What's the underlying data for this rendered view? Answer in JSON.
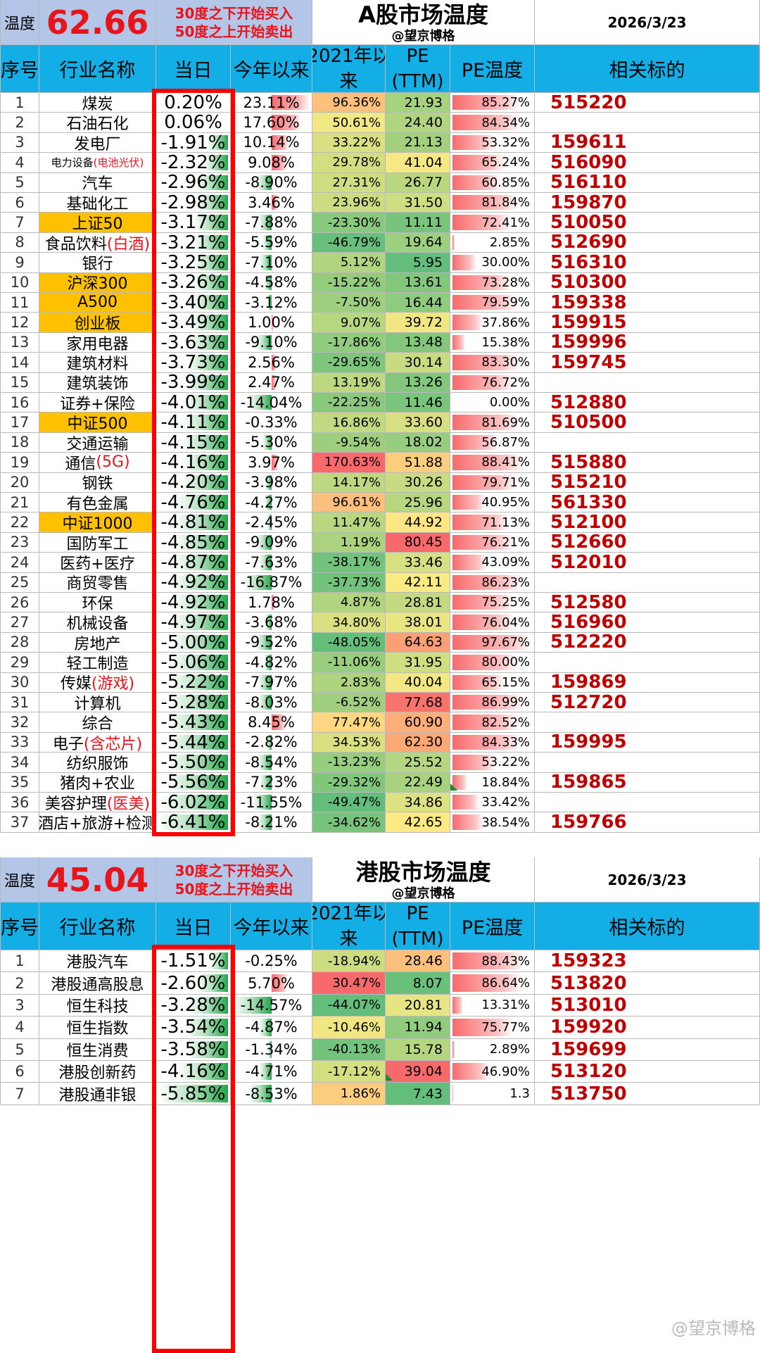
{
  "a": {
    "temp_label": "温度",
    "temp_value": "62.66",
    "rule_buy": "30度之下开始买入",
    "rule_sell": "50度之上开始卖出",
    "title": "A股市场温度",
    "author": "@望京博格",
    "date": "2026/3/23",
    "headers": [
      "序号",
      "行业名称",
      "当日",
      "今年以来",
      "2021年以",
      "来",
      "PE",
      "(TTM)",
      "PE温度",
      "相关标的"
    ],
    "rows": [
      {
        "n": "1",
        "name": "煤炭",
        "suffix": "",
        "day": "0.20%",
        "ytd": "23.11%",
        "yr": "96.36%",
        "pe": "21.93",
        "pt": "85.27%",
        "tk": "515220"
      },
      {
        "n": "2",
        "name": "石油石化",
        "suffix": "",
        "day": "0.06%",
        "ytd": "17.60%",
        "yr": "50.61%",
        "pe": "24.40",
        "pt": "84.34%",
        "tk": ""
      },
      {
        "n": "3",
        "name": "发电厂",
        "suffix": "",
        "day": "-1.91%",
        "ytd": "10.14%",
        "yr": "33.22%",
        "pe": "21.13",
        "pt": "53.32%",
        "tk": "159611"
      },
      {
        "n": "4",
        "name": "电力设备",
        "suffix": "(电池光伏)",
        "day": "-2.32%",
        "ytd": "9.08%",
        "yr": "29.78%",
        "pe": "41.04",
        "pt": "65.24%",
        "tk": "516090"
      },
      {
        "n": "5",
        "name": "汽车",
        "suffix": "",
        "day": "-2.96%",
        "ytd": "-8.90%",
        "yr": "27.31%",
        "pe": "26.77",
        "pt": "60.85%",
        "tk": "516110"
      },
      {
        "n": "6",
        "name": "基础化工",
        "suffix": "",
        "day": "-2.98%",
        "ytd": "3.46%",
        "yr": "23.96%",
        "pe": "31.50",
        "pt": "81.84%",
        "tk": "159870"
      },
      {
        "n": "7",
        "name": "上证50",
        "suffix": "",
        "day": "-3.17%",
        "ytd": "-7.88%",
        "yr": "-23.30%",
        "pe": "11.11",
        "pt": "72.41%",
        "tk": "510050"
      },
      {
        "n": "8",
        "name": "食品饮料",
        "suffix": "(白酒)",
        "day": "-3.21%",
        "ytd": "-5.59%",
        "yr": "-46.79%",
        "pe": "19.64",
        "pt": "2.85%",
        "tk": "512690"
      },
      {
        "n": "9",
        "name": "银行",
        "suffix": "",
        "day": "-3.25%",
        "ytd": "-7.10%",
        "yr": "5.12%",
        "pe": "5.95",
        "pt": "30.00%",
        "tk": "516310"
      },
      {
        "n": "10",
        "name": "沪深300",
        "suffix": "",
        "day": "-3.26%",
        "ytd": "-4.58%",
        "yr": "-15.22%",
        "pe": "13.61",
        "pt": "73.28%",
        "tk": "510300"
      },
      {
        "n": "11",
        "name": "A500",
        "suffix": "",
        "day": "-3.40%",
        "ytd": "-3.12%",
        "yr": "-7.50%",
        "pe": "16.44",
        "pt": "79.59%",
        "tk": "159338"
      },
      {
        "n": "12",
        "name": "创业板",
        "suffix": "",
        "day": "-3.49%",
        "ytd": "1.00%",
        "yr": "9.07%",
        "pe": "39.72",
        "pt": "37.86%",
        "tk": "159915"
      },
      {
        "n": "13",
        "name": "家用电器",
        "suffix": "",
        "day": "-3.63%",
        "ytd": "-9.10%",
        "yr": "-17.86%",
        "pe": "13.48",
        "pt": "15.38%",
        "tk": "159996"
      },
      {
        "n": "14",
        "name": "建筑材料",
        "suffix": "",
        "day": "-3.73%",
        "ytd": "2.56%",
        "yr": "-29.65%",
        "pe": "30.14",
        "pt": "83.30%",
        "tk": "159745"
      },
      {
        "n": "15",
        "name": "建筑装饰",
        "suffix": "",
        "day": "-3.99%",
        "ytd": "2.47%",
        "yr": "13.19%",
        "pe": "13.26",
        "pt": "76.72%",
        "tk": ""
      },
      {
        "n": "16",
        "name": "证券+保险",
        "suffix": "",
        "day": "-4.01%",
        "ytd": "-14.04%",
        "yr": "-22.25%",
        "pe": "11.46",
        "pt": "0.00%",
        "tk": "512880"
      },
      {
        "n": "17",
        "name": "中证500",
        "suffix": "",
        "day": "-4.11%",
        "ytd": "-0.33%",
        "yr": "16.86%",
        "pe": "33.60",
        "pt": "81.69%",
        "tk": "510500"
      },
      {
        "n": "18",
        "name": "交通运输",
        "suffix": "",
        "day": "-4.15%",
        "ytd": "-5.30%",
        "yr": "-9.54%",
        "pe": "18.02",
        "pt": "56.87%",
        "tk": ""
      },
      {
        "n": "19",
        "name": "通信",
        "suffix": "(5G)",
        "day": "-4.16%",
        "ytd": "3.97%",
        "yr": "170.63%",
        "pe": "51.88",
        "pt": "88.41%",
        "tk": "515880"
      },
      {
        "n": "20",
        "name": "钢铁",
        "suffix": "",
        "day": "-4.20%",
        "ytd": "-3.98%",
        "yr": "14.17%",
        "pe": "30.26",
        "pt": "79.71%",
        "tk": "515210"
      },
      {
        "n": "21",
        "name": "有色金属",
        "suffix": "",
        "day": "-4.76%",
        "ytd": "-4.27%",
        "yr": "96.61%",
        "pe": "25.96",
        "pt": "40.95%",
        "tk": "561330"
      },
      {
        "n": "22",
        "name": "中证1000",
        "suffix": "",
        "day": "-4.81%",
        "ytd": "-2.45%",
        "yr": "11.47%",
        "pe": "44.92",
        "pt": "71.13%",
        "tk": "512100"
      },
      {
        "n": "23",
        "name": "国防军工",
        "suffix": "",
        "day": "-4.85%",
        "ytd": "-9.09%",
        "yr": "1.19%",
        "pe": "80.45",
        "pt": "76.21%",
        "tk": "512660"
      },
      {
        "n": "24",
        "name": "医药+医疗",
        "suffix": "",
        "day": "-4.87%",
        "ytd": "-7.63%",
        "yr": "-38.17%",
        "pe": "33.46",
        "pt": "43.09%",
        "tk": "512010"
      },
      {
        "n": "25",
        "name": "商贸零售",
        "suffix": "",
        "day": "-4.92%",
        "ytd": "-16.87%",
        "yr": "-37.73%",
        "pe": "42.11",
        "pt": "86.23%",
        "tk": ""
      },
      {
        "n": "26",
        "name": "环保",
        "suffix": "",
        "day": "-4.92%",
        "ytd": "1.78%",
        "yr": "4.87%",
        "pe": "28.81",
        "pt": "75.25%",
        "tk": "512580"
      },
      {
        "n": "27",
        "name": "机械设备",
        "suffix": "",
        "day": "-4.97%",
        "ytd": "-3.68%",
        "yr": "34.80%",
        "pe": "38.01",
        "pt": "76.04%",
        "tk": "516960"
      },
      {
        "n": "28",
        "name": "房地产",
        "suffix": "",
        "day": "-5.00%",
        "ytd": "-9.52%",
        "yr": "-48.05%",
        "pe": "64.63",
        "pt": "97.67%",
        "tk": "512220"
      },
      {
        "n": "29",
        "name": "轻工制造",
        "suffix": "",
        "day": "-5.06%",
        "ytd": "-4.82%",
        "yr": "-11.06%",
        "pe": "31.95",
        "pt": "80.00%",
        "tk": ""
      },
      {
        "n": "30",
        "name": "传媒",
        "suffix": "(游戏)",
        "day": "-5.22%",
        "ytd": "-7.97%",
        "yr": "2.83%",
        "pe": "40.04",
        "pt": "65.15%",
        "tk": "159869"
      },
      {
        "n": "31",
        "name": "计算机",
        "suffix": "",
        "day": "-5.28%",
        "ytd": "-8.03%",
        "yr": "-6.52%",
        "pe": "77.68",
        "pt": "86.99%",
        "tk": "512720"
      },
      {
        "n": "32",
        "name": "综合",
        "suffix": "",
        "day": "-5.43%",
        "ytd": "8.45%",
        "yr": "77.47%",
        "pe": "60.90",
        "pt": "82.52%",
        "tk": ""
      },
      {
        "n": "33",
        "name": "电子",
        "suffix": "(含芯片)",
        "day": "-5.44%",
        "ytd": "-2.82%",
        "yr": "34.53%",
        "pe": "62.30",
        "pt": "84.33%",
        "tk": "159995"
      },
      {
        "n": "34",
        "name": "纺织服饰",
        "suffix": "",
        "day": "-5.50%",
        "ytd": "-8.54%",
        "yr": "-13.23%",
        "pe": "25.52",
        "pt": "53.22%",
        "tk": ""
      },
      {
        "n": "35",
        "name": "猪肉+农业",
        "suffix": "",
        "day": "-5.56%",
        "ytd": "-7.23%",
        "yr": "-29.32%",
        "pe": "22.49",
        "pt": "18.84%",
        "tk": "159865"
      },
      {
        "n": "36",
        "name": "美容护理",
        "suffix": "(医美)",
        "day": "-6.02%",
        "ytd": "-11.55%",
        "yr": "-49.47%",
        "pe": "34.86",
        "pt": "33.42%",
        "tk": ""
      },
      {
        "n": "37",
        "name": "酒店+旅游+检测",
        "suffix": "",
        "day": "-6.41%",
        "ytd": "-8.21%",
        "yr": "-34.62%",
        "pe": "42.65",
        "pt": "38.54%",
        "tk": "159766"
      }
    ]
  },
  "hk": {
    "temp_label": "温度",
    "temp_value": "45.04",
    "rule_buy": "30度之下开始买入",
    "rule_sell": "50度之上开始卖出",
    "title": "港股市场温度",
    "author": "@望京博格",
    "date": "2026/3/23",
    "headers": [
      "序号",
      "行业名称",
      "当日",
      "今年以来",
      "2021年以",
      "来",
      "PE",
      "(TTM)",
      "PE温度",
      "相关标的"
    ],
    "rows": [
      {
        "n": "1",
        "name": "港股汽车",
        "suffix": "",
        "day": "-1.51%",
        "ytd": "-0.25%",
        "yr": "-18.94%",
        "pe": "28.46",
        "pt": "88.43%",
        "tk": "159323"
      },
      {
        "n": "2",
        "name": "港股通高股息",
        "suffix": "",
        "day": "-2.60%",
        "ytd": "5.70%",
        "yr": "30.47%",
        "pe": "8.07",
        "pt": "86.64%",
        "tk": "513820"
      },
      {
        "n": "3",
        "name": "恒生科技",
        "suffix": "",
        "day": "-3.28%",
        "ytd": "-14.57%",
        "yr": "-44.07%",
        "pe": "20.81",
        "pt": "13.31%",
        "tk": "513010"
      },
      {
        "n": "4",
        "name": "恒生指数",
        "suffix": "",
        "day": "-3.54%",
        "ytd": "-4.87%",
        "yr": "-10.46%",
        "pe": "11.94",
        "pt": "75.77%",
        "tk": "159920"
      },
      {
        "n": "5",
        "name": "恒生消费",
        "suffix": "",
        "day": "-3.58%",
        "ytd": "-1.34%",
        "yr": "-40.13%",
        "pe": "15.78",
        "pt": "2.89%",
        "tk": "159699"
      },
      {
        "n": "6",
        "name": "港股创新药",
        "suffix": "",
        "day": "-4.16%",
        "ytd": "-4.71%",
        "yr": "-17.12%",
        "pe": "39.04",
        "pt": "46.90%",
        "tk": "513120"
      },
      {
        "n": "7",
        "name": "港股通非银",
        "suffix": "",
        "day": "-5.85%",
        "ytd": "-8.53%",
        "yr": "1.86%",
        "pe": "7.43",
        "pt": "1.3",
        "tk": "513750"
      }
    ]
  },
  "watermark": "@望京博格",
  "colors": {
    "header": "#14aee6",
    "label_bg": "#b4c6e7",
    "highlight": "#ffc000",
    "red": "#e8141c",
    "ticker": "#c00000",
    "box": "#ff0000"
  }
}
